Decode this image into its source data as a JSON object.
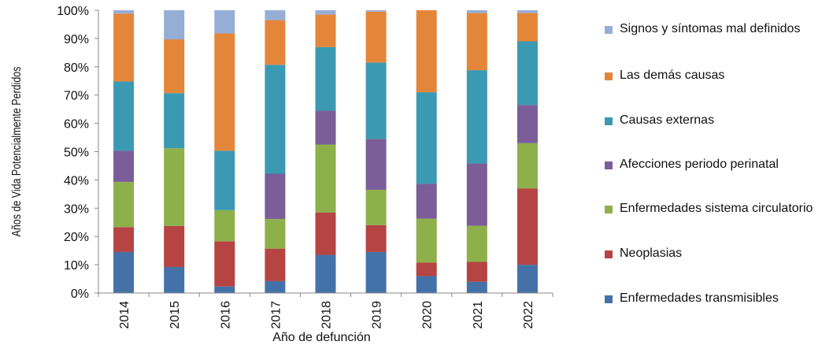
{
  "chart_data": {
    "type": "bar",
    "stacked": true,
    "normalized": true,
    "title": "",
    "xlabel": "Año de defunción",
    "ylabel": "Años de Vida Potencialmente Perdidos",
    "ylim": [
      0,
      100
    ],
    "y_ticks": [
      "0%",
      "10%",
      "20%",
      "30%",
      "40%",
      "50%",
      "60%",
      "70%",
      "80%",
      "90%",
      "100%"
    ],
    "categories": [
      "2014",
      "2015",
      "2016",
      "2017",
      "2018",
      "2019",
      "2020",
      "2021",
      "2022"
    ],
    "grid": false,
    "legend_position": "right",
    "series": [
      {
        "name": "Enfermedades transmisibles",
        "color": "#4472a8",
        "values": [
          14.5,
          9.2,
          2.3,
          4.2,
          13.5,
          14.5,
          6.0,
          4.0,
          10.0
        ]
      },
      {
        "name": "Neoplasias",
        "color": "#b54443",
        "values": [
          8.8,
          14.5,
          16.0,
          11.5,
          15.0,
          9.5,
          4.8,
          7.0,
          27.0
        ]
      },
      {
        "name": "Enfermedades sistema circulatorio",
        "color": "#8db04b",
        "values": [
          16.0,
          27.5,
          11.0,
          10.5,
          24.0,
          12.5,
          15.5,
          12.8,
          16.0
        ]
      },
      {
        "name": "Afecciones periodo perinatal",
        "color": "#7a5d99",
        "values": [
          11.0,
          0.0,
          0.0,
          16.0,
          12.0,
          18.0,
          12.3,
          22.0,
          13.5
        ]
      },
      {
        "name": "Causas externas",
        "color": "#3b9ab2",
        "values": [
          24.5,
          19.5,
          21.0,
          38.5,
          22.5,
          27.0,
          32.4,
          33.0,
          22.5
        ]
      },
      {
        "name": "Las demás causas",
        "color": "#e4863a",
        "values": [
          24.0,
          19.0,
          41.5,
          15.8,
          11.5,
          18.0,
          29.0,
          20.2,
          10.0
        ]
      },
      {
        "name": "Signos y síntomas mal definidos",
        "color": "#96aed6",
        "values": [
          1.2,
          10.3,
          8.2,
          3.5,
          1.5,
          0.5,
          0.0,
          1.0,
          1.0
        ]
      }
    ]
  }
}
